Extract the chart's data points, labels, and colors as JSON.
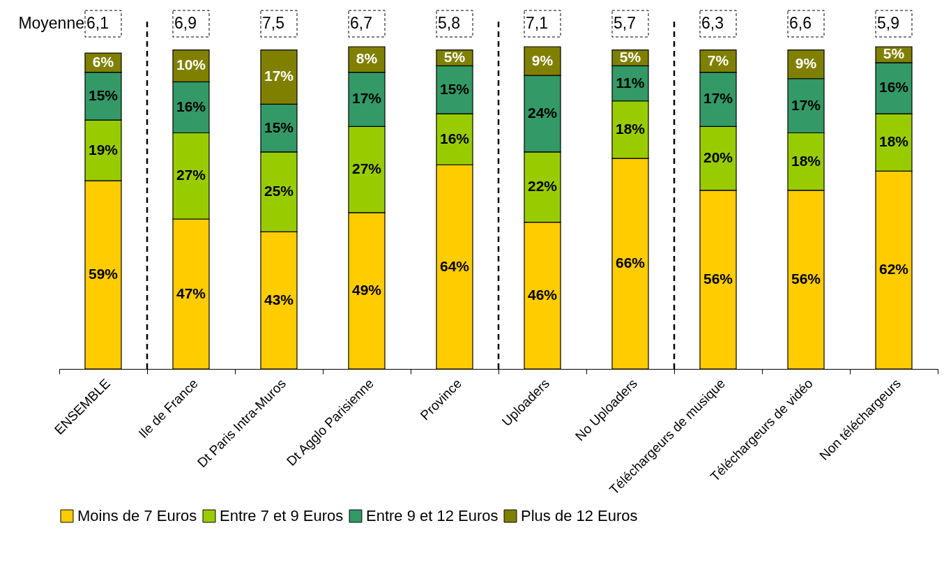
{
  "chart_data": {
    "type": "bar",
    "stacked": true,
    "tick_labels": "x",
    "legend": "bottom",
    "categories": [
      "ENSEMBLE",
      "Ile de France",
      "Dt Paris Intra-Muros",
      "Dt Agglo Parisienne",
      "Province",
      "Uploaders",
      "No Uploaders",
      "Téléchargeurs de musique",
      "Téléchargeurs de vidéo",
      "Non téléchargeurs"
    ],
    "series": [
      {
        "name": "Moins de 7 Euros",
        "color": "#ffcc00",
        "values": [
          59,
          47,
          43,
          49,
          64,
          46,
          66,
          56,
          56,
          62
        ],
        "value_labels": [
          "59%",
          "47%",
          "43%",
          "49%",
          "64%",
          "46%",
          "66%",
          "56%",
          "56%",
          "62%"
        ]
      },
      {
        "name": "Entre 7 et 9 Euros",
        "color": "#99cc00",
        "values": [
          19,
          27,
          25,
          27,
          16,
          22,
          18,
          20,
          18,
          18
        ],
        "value_labels": [
          "19%",
          "27%",
          "25%",
          "27%",
          "16%",
          "22%",
          "18%",
          "20%",
          "18%",
          "18%"
        ]
      },
      {
        "name": "Entre 9 et 12 Euros",
        "color": "#339966",
        "values": [
          15,
          16,
          15,
          17,
          15,
          24,
          11,
          17,
          17,
          16
        ],
        "value_labels": [
          "15%",
          "16%",
          "15%",
          "17%",
          "15%",
          "24%",
          "11%",
          "17%",
          "17%",
          "16%"
        ]
      },
      {
        "name": "Plus de 12 Euros",
        "color": "#808000",
        "values": [
          6,
          10,
          17,
          8,
          5,
          9,
          5,
          7,
          9,
          5
        ],
        "value_labels": [
          "6%",
          "10%",
          "17%",
          "8%",
          "5%",
          "9%",
          "5%",
          "7%",
          "9%",
          "5%"
        ]
      }
    ],
    "ref_lines": [
      {
        "axis": "x",
        "value": "Ile de France",
        "line_style": "dashed"
      },
      {
        "axis": "x",
        "value": "Uploaders",
        "line_style": "dashed"
      },
      {
        "axis": "x",
        "value": "Téléchargeurs de musique",
        "line_style": "dashed"
      }
    ],
    "annotations": [
      "Moyenne",
      "6,1",
      "6,9",
      "7,5",
      "6,7",
      "5,8",
      "7,1",
      "5,7",
      "6,3",
      "6,6",
      "5,9"
    ]
  }
}
